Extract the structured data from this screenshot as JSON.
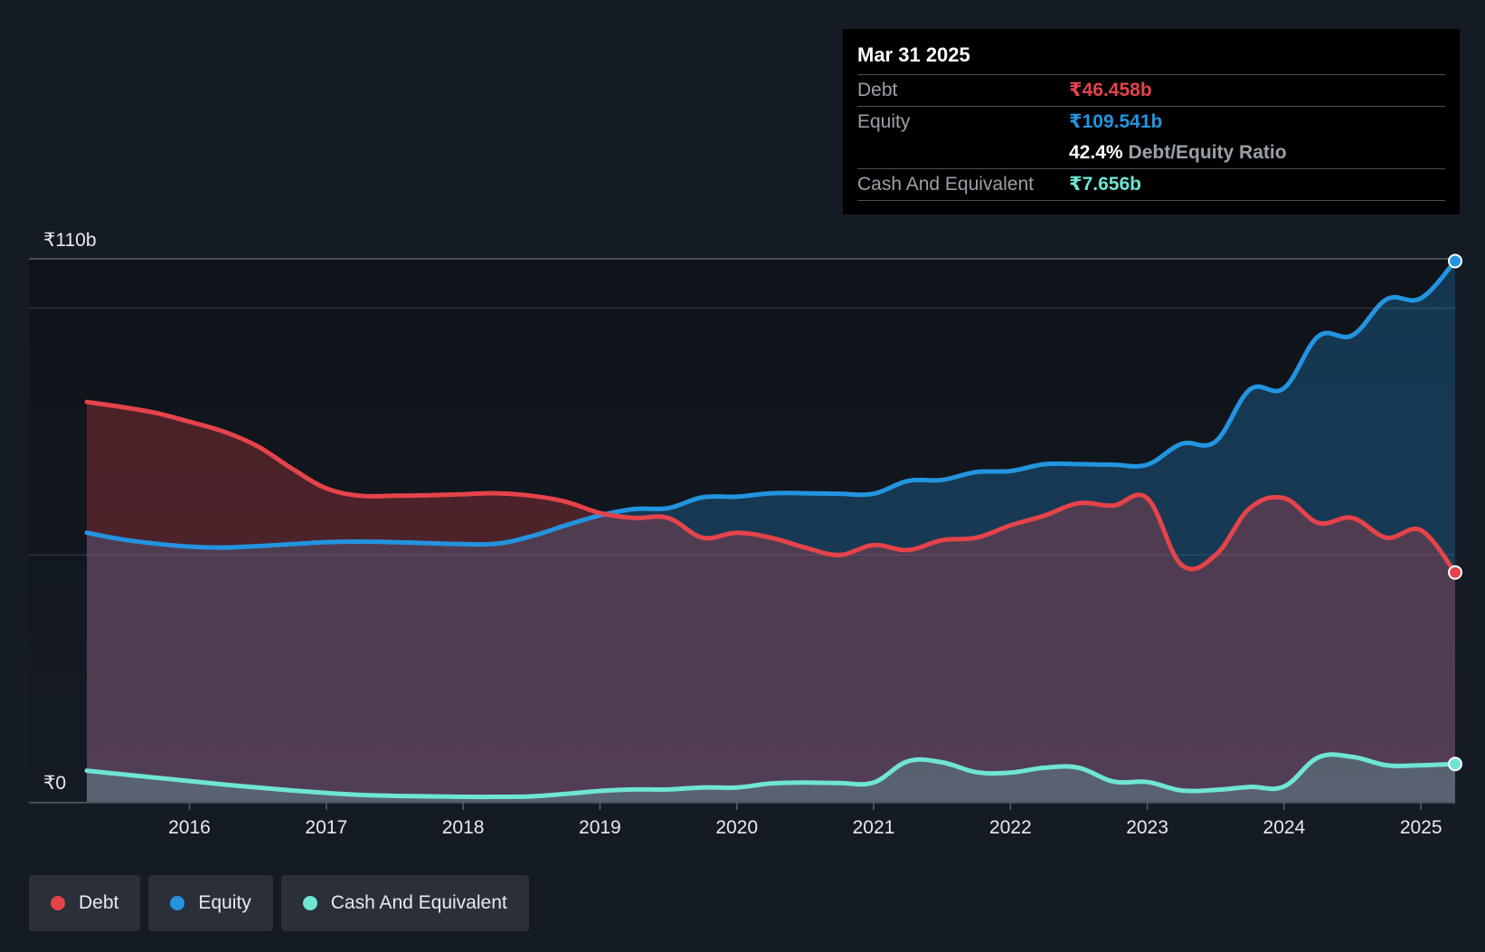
{
  "chart_data": {
    "type": "area",
    "y_unit_prefix": "₹",
    "ylim": [
      0,
      110
    ],
    "y_tick_labels": [
      {
        "value": 110,
        "label": "₹110b"
      },
      {
        "value": 0,
        "label": "₹0"
      }
    ],
    "x_ticks": [
      2016,
      2017,
      2018,
      2019,
      2020,
      2021,
      2022,
      2023,
      2024,
      2025
    ],
    "grid": true,
    "legend_position": "bottom-left",
    "series": [
      {
        "name": "Debt",
        "color": "#e5434a",
        "points": [
          [
            2015.25,
            81
          ],
          [
            2015.5,
            80
          ],
          [
            2015.75,
            78.8
          ],
          [
            2016.0,
            77
          ],
          [
            2016.25,
            75
          ],
          [
            2016.5,
            72
          ],
          [
            2016.75,
            67.5
          ],
          [
            2017.0,
            63.5
          ],
          [
            2017.25,
            62
          ],
          [
            2017.5,
            62
          ],
          [
            2017.75,
            62.1
          ],
          [
            2018.0,
            62.3
          ],
          [
            2018.25,
            62.5
          ],
          [
            2018.5,
            62
          ],
          [
            2018.75,
            60.8
          ],
          [
            2019.0,
            58.5
          ],
          [
            2019.25,
            57.5
          ],
          [
            2019.5,
            57.5
          ],
          [
            2019.75,
            53.5
          ],
          [
            2020.0,
            54.5
          ],
          [
            2020.25,
            53.5
          ],
          [
            2020.5,
            51.5
          ],
          [
            2020.75,
            50
          ],
          [
            2021.0,
            52
          ],
          [
            2021.25,
            51
          ],
          [
            2021.5,
            53
          ],
          [
            2021.75,
            53.5
          ],
          [
            2022.0,
            56
          ],
          [
            2022.25,
            58
          ],
          [
            2022.5,
            60.5
          ],
          [
            2022.75,
            60
          ],
          [
            2023.0,
            61.5
          ],
          [
            2023.25,
            48
          ],
          [
            2023.5,
            50
          ],
          [
            2023.75,
            59.5
          ],
          [
            2024.0,
            61.5
          ],
          [
            2024.25,
            56.5
          ],
          [
            2024.5,
            57.5
          ],
          [
            2024.75,
            53.5
          ],
          [
            2025.0,
            55
          ],
          [
            2025.25,
            46.458
          ]
        ]
      },
      {
        "name": "Equity",
        "color": "#2394df",
        "points": [
          [
            2015.25,
            54.5
          ],
          [
            2015.5,
            53.2
          ],
          [
            2015.75,
            52.3
          ],
          [
            2016.0,
            51.7
          ],
          [
            2016.25,
            51.5
          ],
          [
            2016.5,
            51.8
          ],
          [
            2016.75,
            52.2
          ],
          [
            2017.0,
            52.6
          ],
          [
            2017.25,
            52.7
          ],
          [
            2017.5,
            52.6
          ],
          [
            2017.75,
            52.4
          ],
          [
            2018.0,
            52.2
          ],
          [
            2018.25,
            52.3
          ],
          [
            2018.5,
            53.8
          ],
          [
            2018.75,
            56
          ],
          [
            2019.0,
            58
          ],
          [
            2019.25,
            59.3
          ],
          [
            2019.5,
            59.5
          ],
          [
            2019.75,
            61.7
          ],
          [
            2020.0,
            61.8
          ],
          [
            2020.25,
            62.5
          ],
          [
            2020.5,
            62.5
          ],
          [
            2020.75,
            62.4
          ],
          [
            2021.0,
            62.4
          ],
          [
            2021.25,
            65
          ],
          [
            2021.5,
            65.2
          ],
          [
            2021.75,
            66.8
          ],
          [
            2022.0,
            67
          ],
          [
            2022.25,
            68.4
          ],
          [
            2022.5,
            68.4
          ],
          [
            2022.75,
            68.3
          ],
          [
            2023.0,
            68.3
          ],
          [
            2023.25,
            72.5
          ],
          [
            2023.5,
            73
          ],
          [
            2023.75,
            83.5
          ],
          [
            2024.0,
            83.8
          ],
          [
            2024.25,
            94.3
          ],
          [
            2024.5,
            94.5
          ],
          [
            2024.75,
            101.8
          ],
          [
            2025.0,
            102
          ],
          [
            2025.25,
            109.541
          ]
        ]
      },
      {
        "name": "Cash And Equivalent",
        "color": "#6fe5d4",
        "points": [
          [
            2015.25,
            6.3
          ],
          [
            2015.5,
            5.6
          ],
          [
            2015.75,
            4.9
          ],
          [
            2016.0,
            4.2
          ],
          [
            2016.25,
            3.5
          ],
          [
            2016.5,
            2.9
          ],
          [
            2016.75,
            2.3
          ],
          [
            2017.0,
            1.8
          ],
          [
            2017.25,
            1.4
          ],
          [
            2017.5,
            1.2
          ],
          [
            2017.75,
            1.1
          ],
          [
            2018.0,
            1.0
          ],
          [
            2018.25,
            1.0
          ],
          [
            2018.5,
            1.1
          ],
          [
            2018.75,
            1.6
          ],
          [
            2019.0,
            2.2
          ],
          [
            2019.25,
            2.5
          ],
          [
            2019.5,
            2.5
          ],
          [
            2019.75,
            2.9
          ],
          [
            2020.0,
            2.9
          ],
          [
            2020.25,
            3.7
          ],
          [
            2020.5,
            3.9
          ],
          [
            2020.75,
            3.8
          ],
          [
            2021.0,
            3.9
          ],
          [
            2021.25,
            8.2
          ],
          [
            2021.5,
            8.0
          ],
          [
            2021.75,
            6.0
          ],
          [
            2022.0,
            5.9
          ],
          [
            2022.25,
            6.9
          ],
          [
            2022.5,
            6.9
          ],
          [
            2022.75,
            4.1
          ],
          [
            2023.0,
            4.0
          ],
          [
            2023.25,
            2.3
          ],
          [
            2023.5,
            2.4
          ],
          [
            2023.75,
            3.0
          ],
          [
            2024.0,
            3.1
          ],
          [
            2024.25,
            9.0
          ],
          [
            2024.5,
            9.1
          ],
          [
            2024.75,
            7.4
          ],
          [
            2025.0,
            7.4
          ],
          [
            2025.25,
            7.656
          ]
        ]
      }
    ]
  },
  "tooltip": {
    "date": "Mar 31 2025",
    "debt_label": "Debt",
    "debt_value": "₹46.458b",
    "equity_label": "Equity",
    "equity_value": "₹109.541b",
    "ratio_value": "42.4%",
    "ratio_label": "Debt/Equity Ratio",
    "cash_label": "Cash And Equivalent",
    "cash_value": "₹7.656b"
  },
  "legend": [
    {
      "label": "Debt",
      "color": "#e5434a"
    },
    {
      "label": "Equity",
      "color": "#2394df"
    },
    {
      "label": "Cash And Equivalent",
      "color": "#6fe5d4"
    }
  ]
}
